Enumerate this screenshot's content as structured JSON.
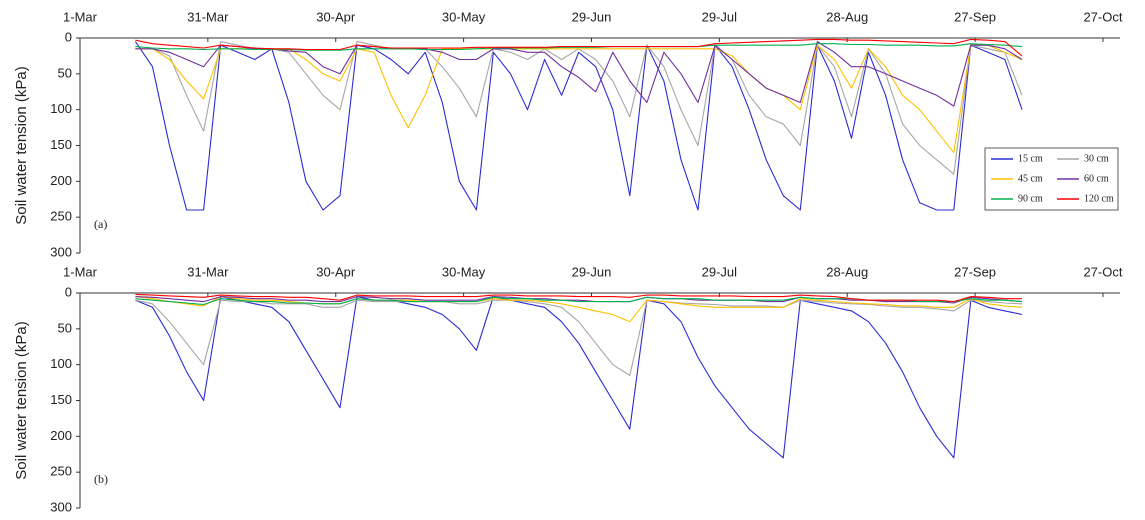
{
  "chart_data": [
    {
      "type": "line",
      "label": "(a)",
      "ylabel": "Soil water tension (kPa)",
      "legend": "upper right",
      "x": [
        "14-Mar",
        "18-Mar",
        "22-Mar",
        "26-Mar",
        "30-Mar",
        "3-Apr",
        "7-Apr",
        "11-Apr",
        "15-Apr",
        "19-Apr",
        "23-Apr",
        "27-Apr",
        "1-May",
        "5-May",
        "9-May",
        "13-May",
        "17-May",
        "21-May",
        "25-May",
        "29-May",
        "2-Jun",
        "6-Jun",
        "10-Jun",
        "14-Jun",
        "18-Jun",
        "22-Jun",
        "26-Jun",
        "30-Jun",
        "4-Jul",
        "8-Jul",
        "12-Jul",
        "16-Jul",
        "20-Jul",
        "24-Jul",
        "28-Jul",
        "1-Aug",
        "5-Aug",
        "9-Aug",
        "13-Aug",
        "17-Aug",
        "21-Aug",
        "25-Aug",
        "29-Aug",
        "2-Sep",
        "6-Sep",
        "10-Sep",
        "14-Sep",
        "18-Sep",
        "22-Sep",
        "26-Sep",
        "30-Sep",
        "4-Oct",
        "8-Oct"
      ],
      "xlim": [
        "1-Mar",
        "31-Oct"
      ],
      "xticks": [
        "1-Mar",
        "31-Mar",
        "30-Apr",
        "30-May",
        "29-Jun",
        "29-Jul",
        "28-Aug",
        "27-Sep",
        "27-Oct"
      ],
      "ylim": [
        300,
        0
      ],
      "yticks": [
        0,
        50,
        100,
        150,
        200,
        250,
        300
      ],
      "series": [
        {
          "name": "15 cm",
          "color": "#2b2bd4",
          "values": [
            5,
            40,
            150,
            240,
            240,
            10,
            20,
            30,
            15,
            90,
            200,
            240,
            220,
            10,
            15,
            30,
            50,
            20,
            90,
            200,
            240,
            20,
            50,
            100,
            30,
            80,
            20,
            40,
            100,
            220,
            10,
            60,
            170,
            240,
            10,
            40,
            100,
            170,
            220,
            240,
            10,
            60,
            140,
            20,
            80,
            170,
            230,
            240,
            240,
            10,
            20,
            30,
            100
          ]
        },
        {
          "name": "30 cm",
          "color": "#a6a6a6",
          "values": [
            15,
            15,
            25,
            80,
            130,
            5,
            10,
            15,
            15,
            20,
            50,
            80,
            100,
            5,
            10,
            15,
            15,
            15,
            40,
            70,
            110,
            15,
            20,
            30,
            15,
            30,
            15,
            30,
            60,
            110,
            10,
            40,
            100,
            150,
            10,
            30,
            80,
            110,
            120,
            150,
            10,
            40,
            110,
            15,
            50,
            120,
            150,
            170,
            190,
            10,
            15,
            20,
            80
          ]
        },
        {
          "name": "45 cm",
          "color": "#ffc000",
          "values": [
            15,
            15,
            30,
            60,
            85,
            15,
            15,
            15,
            15,
            15,
            30,
            50,
            60,
            15,
            20,
            80,
            125,
            80,
            15,
            15,
            15,
            15,
            15,
            15,
            15,
            15,
            15,
            15,
            15,
            15,
            15,
            15,
            15,
            15,
            15,
            25,
            50,
            70,
            80,
            100,
            10,
            30,
            70,
            15,
            40,
            80,
            100,
            130,
            160,
            10,
            10,
            20,
            30
          ]
        },
        {
          "name": "60 cm",
          "color": "#7030a0",
          "values": [
            15,
            15,
            20,
            30,
            40,
            10,
            12,
            15,
            15,
            18,
            20,
            40,
            50,
            10,
            12,
            15,
            15,
            15,
            20,
            30,
            30,
            15,
            15,
            20,
            20,
            40,
            55,
            75,
            20,
            60,
            90,
            20,
            50,
            90,
            10,
            30,
            50,
            70,
            80,
            90,
            5,
            20,
            40,
            40,
            50,
            60,
            70,
            80,
            95,
            10,
            10,
            15,
            30
          ]
        },
        {
          "name": "90 cm",
          "color": "#00b050",
          "values": [
            12,
            14,
            15,
            15,
            16,
            15,
            15,
            16,
            16,
            16,
            17,
            17,
            17,
            15,
            15,
            15,
            15,
            16,
            16,
            16,
            15,
            14,
            14,
            14,
            14,
            13,
            13,
            13,
            12,
            12,
            12,
            12,
            12,
            12,
            10,
            10,
            10,
            10,
            10,
            10,
            8,
            8,
            9,
            9,
            10,
            10,
            10,
            11,
            11,
            8,
            9,
            10,
            12
          ]
        },
        {
          "name": "120 cm",
          "color": "#ff0000",
          "values": [
            3,
            8,
            10,
            12,
            14,
            10,
            12,
            14,
            15,
            15,
            16,
            16,
            16,
            10,
            12,
            14,
            14,
            14,
            14,
            14,
            13,
            13,
            13,
            13,
            13,
            12,
            12,
            12,
            12,
            12,
            12,
            12,
            12,
            12,
            8,
            7,
            6,
            5,
            4,
            3,
            2,
            2,
            3,
            3,
            4,
            5,
            6,
            7,
            8,
            2,
            3,
            5,
            25
          ]
        }
      ]
    },
    {
      "type": "line",
      "label": "(b)",
      "ylabel": "Soil water tension (kPa)",
      "x": [
        "14-Mar",
        "18-Mar",
        "22-Mar",
        "26-Mar",
        "30-Mar",
        "3-Apr",
        "7-Apr",
        "11-Apr",
        "15-Apr",
        "19-Apr",
        "23-Apr",
        "27-Apr",
        "1-May",
        "5-May",
        "9-May",
        "13-May",
        "17-May",
        "21-May",
        "25-May",
        "29-May",
        "2-Jun",
        "6-Jun",
        "10-Jun",
        "14-Jun",
        "18-Jun",
        "22-Jun",
        "26-Jun",
        "30-Jun",
        "4-Jul",
        "8-Jul",
        "12-Jul",
        "16-Jul",
        "20-Jul",
        "24-Jul",
        "28-Jul",
        "1-Aug",
        "5-Aug",
        "9-Aug",
        "13-Aug",
        "17-Aug",
        "21-Aug",
        "25-Aug",
        "29-Aug",
        "2-Sep",
        "6-Sep",
        "10-Sep",
        "14-Sep",
        "18-Sep",
        "22-Sep",
        "26-Sep",
        "30-Sep",
        "4-Oct",
        "8-Oct"
      ],
      "xlim": [
        "1-Mar",
        "31-Oct"
      ],
      "xticks": [
        "1-Mar",
        "31-Mar",
        "30-Apr",
        "30-May",
        "29-Jun",
        "29-Jul",
        "28-Aug",
        "27-Sep",
        "27-Oct"
      ],
      "ylim": [
        300,
        0
      ],
      "yticks": [
        0,
        50,
        100,
        150,
        200,
        250,
        300
      ],
      "series": [
        {
          "color": "#2b2bd4",
          "values": [
            10,
            20,
            60,
            110,
            150,
            5,
            10,
            15,
            20,
            40,
            80,
            120,
            160,
            5,
            10,
            10,
            15,
            20,
            30,
            50,
            80,
            5,
            10,
            15,
            20,
            40,
            70,
            110,
            150,
            190,
            10,
            15,
            40,
            90,
            130,
            160,
            190,
            210,
            230,
            10,
            15,
            20,
            25,
            40,
            70,
            110,
            160,
            200,
            230,
            10,
            20,
            25,
            30
          ]
        },
        {
          "color": "#a6a6a6",
          "values": [
            10,
            15,
            40,
            70,
            100,
            10,
            12,
            12,
            15,
            15,
            15,
            20,
            20,
            10,
            12,
            12,
            12,
            12,
            12,
            15,
            15,
            10,
            10,
            12,
            15,
            20,
            40,
            70,
            100,
            115,
            10,
            12,
            14,
            15,
            16,
            18,
            18,
            18,
            20,
            10,
            12,
            14,
            15,
            16,
            18,
            20,
            20,
            22,
            25,
            10,
            12,
            14,
            15
          ]
        },
        {
          "color": "#ffc000",
          "values": [
            5,
            8,
            12,
            15,
            18,
            5,
            8,
            10,
            10,
            12,
            14,
            15,
            15,
            8,
            10,
            10,
            10,
            12,
            12,
            12,
            12,
            8,
            10,
            10,
            12,
            15,
            20,
            25,
            30,
            40,
            10,
            12,
            15,
            18,
            20,
            20,
            20,
            20,
            20,
            8,
            10,
            12,
            14,
            15,
            16,
            18,
            18,
            20,
            20,
            8,
            15,
            18,
            20
          ]
        },
        {
          "color": "#7030a0",
          "values": [
            5,
            6,
            8,
            10,
            12,
            5,
            6,
            8,
            8,
            10,
            10,
            12,
            12,
            5,
            6,
            8,
            8,
            10,
            10,
            10,
            10,
            5,
            6,
            8,
            8,
            10,
            10,
            12,
            12,
            12,
            6,
            8,
            8,
            10,
            10,
            10,
            10,
            12,
            12,
            6,
            8,
            8,
            10,
            10,
            12,
            12,
            12,
            12,
            14,
            6,
            8,
            10,
            12
          ]
        },
        {
          "color": "#00b050",
          "values": [
            8,
            10,
            12,
            14,
            16,
            8,
            10,
            12,
            12,
            14,
            14,
            15,
            15,
            8,
            10,
            10,
            12,
            12,
            12,
            12,
            12,
            6,
            8,
            8,
            10,
            10,
            12,
            12,
            12,
            12,
            6,
            8,
            8,
            8,
            10,
            10,
            10,
            10,
            10,
            6,
            8,
            8,
            8,
            10,
            10,
            10,
            12,
            12,
            12,
            8,
            10,
            10,
            12
          ]
        },
        {
          "color": "#ff0000",
          "values": [
            2,
            3,
            4,
            5,
            6,
            3,
            4,
            5,
            5,
            6,
            6,
            8,
            10,
            3,
            4,
            4,
            4,
            5,
            5,
            5,
            5,
            3,
            3,
            4,
            4,
            4,
            5,
            5,
            5,
            6,
            3,
            3,
            4,
            4,
            4,
            4,
            5,
            5,
            5,
            3,
            4,
            5,
            8,
            10,
            10,
            10,
            10,
            10,
            12,
            5,
            6,
            8,
            8
          ]
        }
      ]
    }
  ]
}
